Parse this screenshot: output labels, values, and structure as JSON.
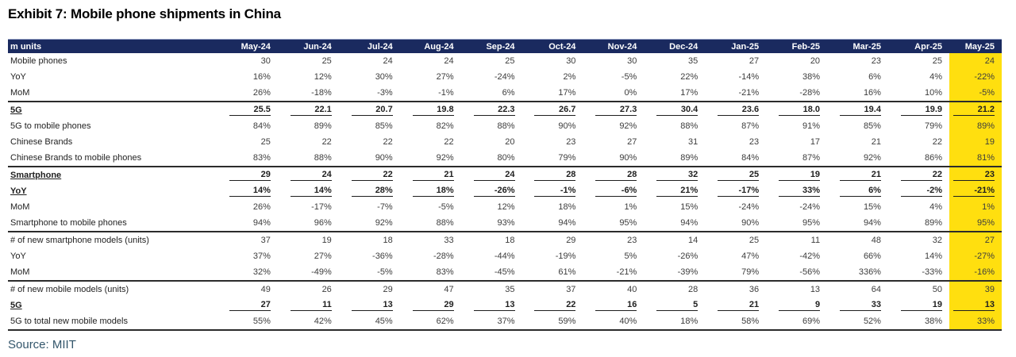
{
  "title": "Exhibit 7: Mobile phone shipments in China",
  "source": "Source: MIIT",
  "colors": {
    "header_bg": "#1A2A5F",
    "header_text": "#FFFFFF",
    "highlight": "#FFDF0F",
    "rule": "#2B2B2B",
    "source_text": "#33566B"
  },
  "table": {
    "unit_label": "m units",
    "columns": [
      "May-24",
      "Jun-24",
      "Jul-24",
      "Aug-24",
      "Sep-24",
      "Oct-24",
      "Nov-24",
      "Dec-24",
      "Jan-25",
      "Feb-25",
      "Mar-25",
      "Apr-25",
      "May-25"
    ],
    "highlighted_column": "May-25",
    "rows": [
      {
        "label": "Mobile phones",
        "values": [
          "30",
          "25",
          "24",
          "24",
          "25",
          "30",
          "30",
          "35",
          "27",
          "20",
          "23",
          "25",
          "24"
        ],
        "emphasis": false,
        "rule_below": false
      },
      {
        "label": "YoY",
        "values": [
          "16%",
          "12%",
          "30%",
          "27%",
          "-24%",
          "2%",
          "-5%",
          "22%",
          "-14%",
          "38%",
          "6%",
          "4%",
          "-22%"
        ],
        "emphasis": false,
        "rule_below": false
      },
      {
        "label": "MoM",
        "values": [
          "26%",
          "-18%",
          "-3%",
          "-1%",
          "6%",
          "17%",
          "0%",
          "17%",
          "-21%",
          "-28%",
          "16%",
          "10%",
          "-5%"
        ],
        "emphasis": false,
        "rule_below": true
      },
      {
        "label": "5G",
        "values": [
          "25.5",
          "22.1",
          "20.7",
          "19.8",
          "22.3",
          "26.7",
          "27.3",
          "30.4",
          "23.6",
          "18.0",
          "19.4",
          "19.9",
          "21.2"
        ],
        "emphasis": true,
        "rule_below": false
      },
      {
        "label": "5G to mobile phones",
        "values": [
          "84%",
          "89%",
          "85%",
          "82%",
          "88%",
          "90%",
          "92%",
          "88%",
          "87%",
          "91%",
          "85%",
          "79%",
          "89%"
        ],
        "emphasis": false,
        "rule_below": false
      },
      {
        "label": "Chinese Brands",
        "values": [
          "25",
          "22",
          "22",
          "22",
          "20",
          "23",
          "27",
          "31",
          "23",
          "17",
          "21",
          "22",
          "19"
        ],
        "emphasis": false,
        "rule_below": false
      },
      {
        "label": "Chinese Brands to mobile phones",
        "values": [
          "83%",
          "88%",
          "90%",
          "92%",
          "80%",
          "79%",
          "90%",
          "89%",
          "84%",
          "87%",
          "92%",
          "86%",
          "81%"
        ],
        "emphasis": false,
        "rule_below": true
      },
      {
        "label": "Smartphone",
        "values": [
          "29",
          "24",
          "22",
          "21",
          "24",
          "28",
          "28",
          "32",
          "25",
          "19",
          "21",
          "22",
          "23"
        ],
        "emphasis": true,
        "rule_below": false
      },
      {
        "label": "YoY",
        "values": [
          "14%",
          "14%",
          "28%",
          "18%",
          "-26%",
          "-1%",
          "-6%",
          "21%",
          "-17%",
          "33%",
          "6%",
          "-2%",
          "-21%"
        ],
        "emphasis": true,
        "rule_below": false
      },
      {
        "label": "MoM",
        "values": [
          "26%",
          "-17%",
          "-7%",
          "-5%",
          "12%",
          "18%",
          "1%",
          "15%",
          "-24%",
          "-24%",
          "15%",
          "4%",
          "1%"
        ],
        "emphasis": false,
        "rule_below": false
      },
      {
        "label": "Smartphone to mobile phones",
        "values": [
          "94%",
          "96%",
          "92%",
          "88%",
          "93%",
          "94%",
          "95%",
          "94%",
          "90%",
          "95%",
          "94%",
          "89%",
          "95%"
        ],
        "emphasis": false,
        "rule_below": true
      },
      {
        "label": "# of new smartphone models (units)",
        "values": [
          "37",
          "19",
          "18",
          "33",
          "18",
          "29",
          "23",
          "14",
          "25",
          "11",
          "48",
          "32",
          "27"
        ],
        "emphasis": false,
        "rule_below": false
      },
      {
        "label": "YoY",
        "values": [
          "37%",
          "27%",
          "-36%",
          "-28%",
          "-44%",
          "-19%",
          "5%",
          "-26%",
          "47%",
          "-42%",
          "66%",
          "14%",
          "-27%"
        ],
        "emphasis": false,
        "rule_below": false
      },
      {
        "label": "MoM",
        "values": [
          "32%",
          "-49%",
          "-5%",
          "83%",
          "-45%",
          "61%",
          "-21%",
          "-39%",
          "79%",
          "-56%",
          "336%",
          "-33%",
          "-16%"
        ],
        "emphasis": false,
        "rule_below": true
      },
      {
        "label": "# of new mobile models (units)",
        "values": [
          "49",
          "26",
          "29",
          "47",
          "35",
          "37",
          "40",
          "28",
          "36",
          "13",
          "64",
          "50",
          "39"
        ],
        "emphasis": false,
        "rule_below": false
      },
      {
        "label": "5G",
        "values": [
          "27",
          "11",
          "13",
          "29",
          "13",
          "22",
          "16",
          "5",
          "21",
          "9",
          "33",
          "19",
          "13"
        ],
        "emphasis": true,
        "rule_below": false
      },
      {
        "label": "5G to total new mobile models",
        "values": [
          "55%",
          "42%",
          "45%",
          "62%",
          "37%",
          "59%",
          "40%",
          "18%",
          "58%",
          "69%",
          "52%",
          "38%",
          "33%"
        ],
        "emphasis": false,
        "rule_below": true
      }
    ]
  },
  "chart_data": {
    "type": "table",
    "title": "Exhibit 7: Mobile phone shipments in China",
    "unit": "m units",
    "categories": [
      "May-24",
      "Jun-24",
      "Jul-24",
      "Aug-24",
      "Sep-24",
      "Oct-24",
      "Nov-24",
      "Dec-24",
      "Jan-25",
      "Feb-25",
      "Mar-25",
      "Apr-25",
      "May-25"
    ],
    "highlighted_category": "May-25",
    "series": [
      {
        "name": "Mobile phones",
        "values": [
          30,
          25,
          24,
          24,
          25,
          30,
          30,
          35,
          27,
          20,
          23,
          25,
          24
        ]
      },
      {
        "name": "Mobile phones YoY %",
        "values": [
          16,
          12,
          30,
          27,
          -24,
          2,
          -5,
          22,
          -14,
          38,
          6,
          4,
          -22
        ]
      },
      {
        "name": "Mobile phones MoM %",
        "values": [
          26,
          -18,
          -3,
          -1,
          6,
          17,
          0,
          17,
          -21,
          -28,
          16,
          10,
          -5
        ]
      },
      {
        "name": "5G",
        "values": [
          25.5,
          22.1,
          20.7,
          19.8,
          22.3,
          26.7,
          27.3,
          30.4,
          23.6,
          18.0,
          19.4,
          19.9,
          21.2
        ]
      },
      {
        "name": "5G to mobile phones %",
        "values": [
          84,
          89,
          85,
          82,
          88,
          90,
          92,
          88,
          87,
          91,
          85,
          79,
          89
        ]
      },
      {
        "name": "Chinese Brands",
        "values": [
          25,
          22,
          22,
          22,
          20,
          23,
          27,
          31,
          23,
          17,
          21,
          22,
          19
        ]
      },
      {
        "name": "Chinese Brands to mobile phones %",
        "values": [
          83,
          88,
          90,
          92,
          80,
          79,
          90,
          89,
          84,
          87,
          92,
          86,
          81
        ]
      },
      {
        "name": "Smartphone",
        "values": [
          29,
          24,
          22,
          21,
          24,
          28,
          28,
          32,
          25,
          19,
          21,
          22,
          23
        ]
      },
      {
        "name": "Smartphone YoY %",
        "values": [
          14,
          14,
          28,
          18,
          -26,
          -1,
          -6,
          21,
          -17,
          33,
          6,
          -2,
          -21
        ]
      },
      {
        "name": "Smartphone MoM %",
        "values": [
          26,
          -17,
          -7,
          -5,
          12,
          18,
          1,
          15,
          -24,
          -24,
          15,
          4,
          1
        ]
      },
      {
        "name": "Smartphone to mobile phones %",
        "values": [
          94,
          96,
          92,
          88,
          93,
          94,
          95,
          94,
          90,
          95,
          94,
          89,
          95
        ]
      },
      {
        "name": "# of new smartphone models (units)",
        "values": [
          37,
          19,
          18,
          33,
          18,
          29,
          23,
          14,
          25,
          11,
          48,
          32,
          27
        ]
      },
      {
        "name": "New smartphone models YoY %",
        "values": [
          37,
          27,
          -36,
          -28,
          -44,
          -19,
          5,
          -26,
          47,
          -42,
          66,
          14,
          -27
        ]
      },
      {
        "name": "New smartphone models MoM %",
        "values": [
          32,
          -49,
          -5,
          83,
          -45,
          61,
          -21,
          -39,
          79,
          -56,
          336,
          -33,
          -16
        ]
      },
      {
        "name": "# of new mobile models (units)",
        "values": [
          49,
          26,
          29,
          47,
          35,
          37,
          40,
          28,
          36,
          13,
          64,
          50,
          39
        ]
      },
      {
        "name": "New mobile models 5G",
        "values": [
          27,
          11,
          13,
          29,
          13,
          22,
          16,
          5,
          21,
          9,
          33,
          19,
          13
        ]
      },
      {
        "name": "5G to total new mobile models %",
        "values": [
          55,
          42,
          45,
          62,
          37,
          59,
          40,
          18,
          58,
          69,
          52,
          38,
          33
        ]
      }
    ],
    "source": "Source: MIIT"
  }
}
